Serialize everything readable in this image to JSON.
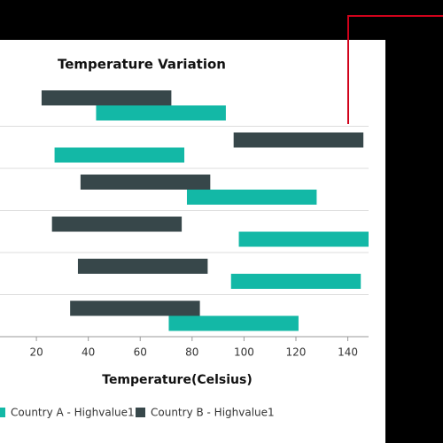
{
  "chart_data": {
    "type": "rangebar",
    "title": "Temperature Variation",
    "x_label": "Temperature(Celsius)",
    "categories": [
      null,
      null,
      null,
      null,
      null,
      null
    ],
    "series": [
      {
        "name": "Country A - Highvalue1",
        "color": "#13b8a6",
        "low": [
          43,
          27,
          78,
          98,
          95,
          71
        ],
        "high": [
          93,
          77,
          128,
          148,
          145,
          121
        ]
      },
      {
        "name": "Country B - Highvalue1",
        "color": "#37474a",
        "low": [
          22,
          96,
          37,
          26,
          36,
          33
        ],
        "high": [
          72,
          146,
          87,
          76,
          86,
          83
        ]
      }
    ],
    "xlim": [
      0,
      148
    ],
    "xticks": [
      20,
      40,
      60,
      80,
      100,
      120,
      140
    ],
    "legend": "bottom"
  }
}
